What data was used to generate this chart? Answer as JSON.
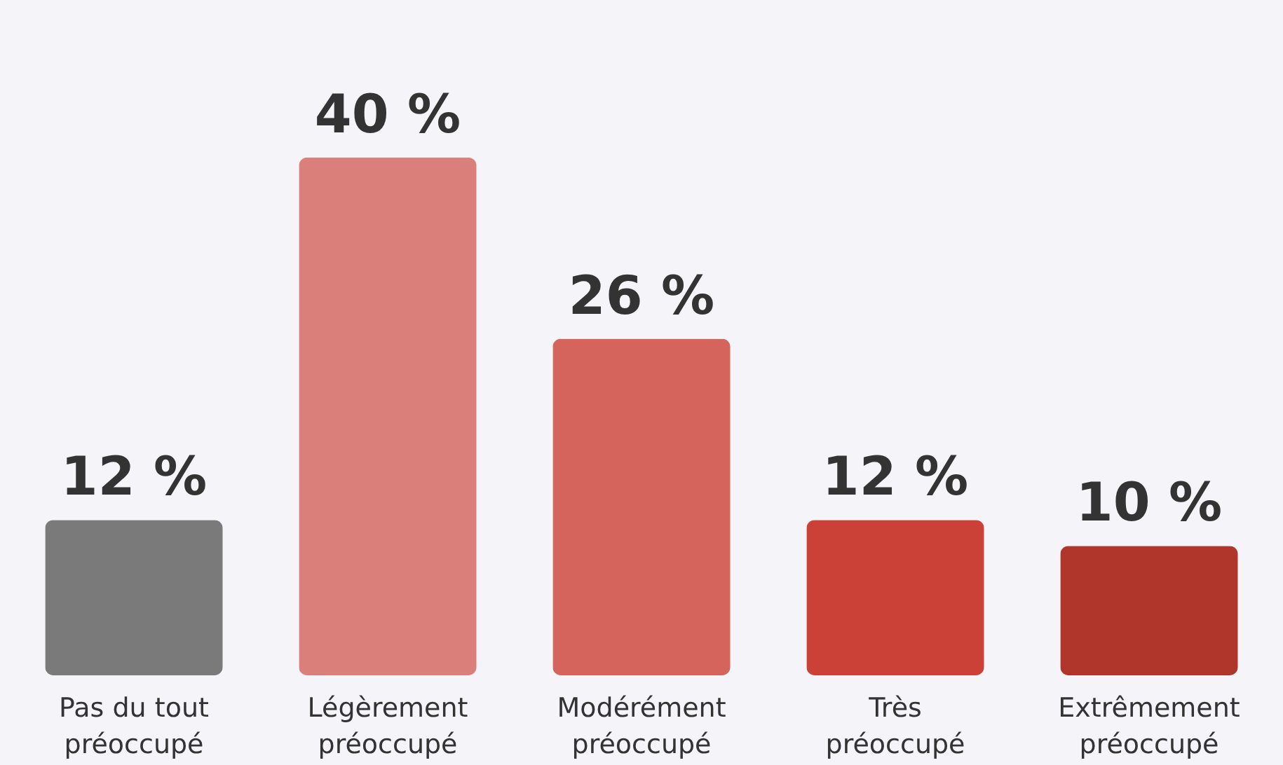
{
  "chart_data": {
    "type": "bar",
    "categories": [
      "Pas du tout préoccupé",
      "Légèrement préoccupé",
      "Modérément préoccupé",
      "Très préoccupé",
      "Extrêmement préoccupé"
    ],
    "values": [
      12,
      40,
      26,
      12,
      10
    ],
    "colors": [
      "#7a7a7a",
      "#db7f7a",
      "#d5645d",
      "#cc4137",
      "#b0362c"
    ],
    "value_labels": [
      "12 %",
      "40 %",
      "26 %",
      "12 %",
      "10 %"
    ],
    "grid": false,
    "tick_labels": "x"
  }
}
